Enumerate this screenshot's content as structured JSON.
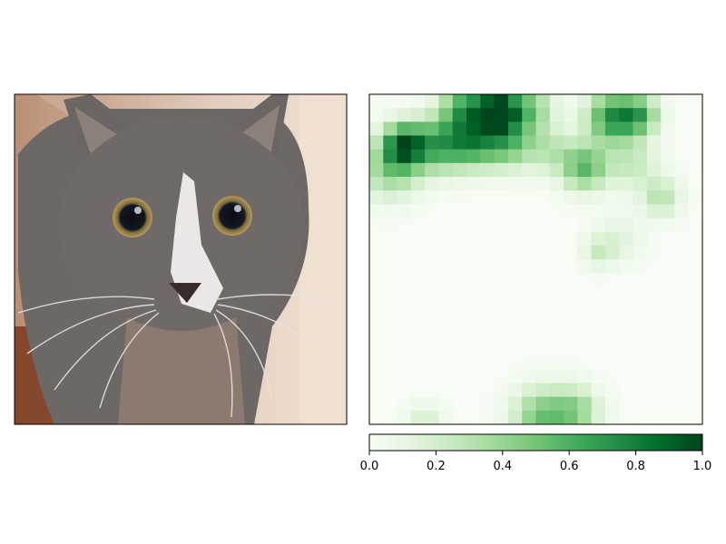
{
  "figure": {
    "left_panel": "photo-of-gray-and-white-cat",
    "right_panel": "attribution-heatmap"
  },
  "colors": {
    "colormap": [
      "#f7fcf5",
      "#e5f5e0",
      "#c7e9c0",
      "#a1d99b",
      "#74c476",
      "#41ab5d",
      "#238b45",
      "#006d2c",
      "#00441b"
    ],
    "background": "#f7fcf5"
  },
  "chart_data": {
    "type": "heatmap",
    "grid": "off",
    "colorbar": {
      "range": [
        0,
        1
      ],
      "ticks": [
        "0.0",
        "0.2",
        "0.4",
        "0.6",
        "0.8",
        "1.0"
      ],
      "placement": "bottom"
    },
    "rows": 24,
    "cols": 24,
    "hotspots": [
      {
        "row": 0.5,
        "col": 6.5,
        "sigma": 1.3,
        "value": 0.6
      },
      {
        "row": 0.7,
        "col": 8.8,
        "sigma": 1.0,
        "value": 0.98
      },
      {
        "row": 0.5,
        "col": 11.0,
        "sigma": 1.2,
        "value": 0.45
      },
      {
        "row": 1.2,
        "col": 17.0,
        "sigma": 1.3,
        "value": 0.7
      },
      {
        "row": 1.0,
        "col": 19.0,
        "sigma": 1.0,
        "value": 0.5
      },
      {
        "row": 3.2,
        "col": 2.0,
        "sigma": 1.1,
        "value": 0.8
      },
      {
        "row": 3.2,
        "col": 4.5,
        "sigma": 1.4,
        "value": 0.55
      },
      {
        "row": 3.0,
        "col": 7.0,
        "sigma": 1.3,
        "value": 0.55
      },
      {
        "row": 3.0,
        "col": 9.5,
        "sigma": 1.3,
        "value": 0.5
      },
      {
        "row": 5.0,
        "col": 1.0,
        "sigma": 1.5,
        "value": 0.4
      },
      {
        "row": 4.8,
        "col": 15.0,
        "sigma": 1.2,
        "value": 0.55
      },
      {
        "row": 3.5,
        "col": 12.5,
        "sigma": 1.2,
        "value": 0.25
      },
      {
        "row": 4.5,
        "col": 18.5,
        "sigma": 1.3,
        "value": 0.25
      },
      {
        "row": 7.0,
        "col": 20.5,
        "sigma": 1.0,
        "value": 0.3
      },
      {
        "row": 10.0,
        "col": 17.5,
        "sigma": 1.2,
        "value": 0.15
      },
      {
        "row": 11.0,
        "col": 16.0,
        "sigma": 0.8,
        "value": 0.2
      },
      {
        "row": 23.0,
        "col": 12.0,
        "sigma": 1.5,
        "value": 0.5
      },
      {
        "row": 22.5,
        "col": 14.5,
        "sigma": 1.2,
        "value": 0.35
      },
      {
        "row": 23.3,
        "col": 3.5,
        "sigma": 0.9,
        "value": 0.2
      }
    ]
  }
}
